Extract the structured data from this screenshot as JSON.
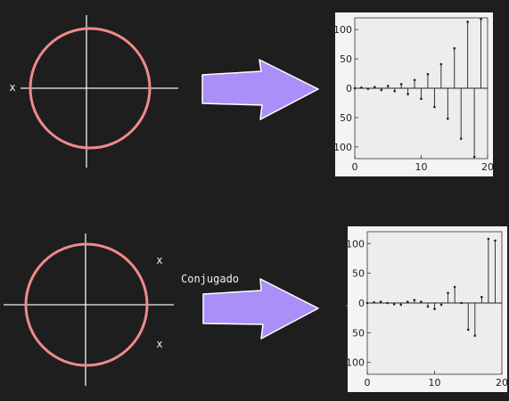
{
  "colors": {
    "background": "#1e1e1e",
    "circle": "#f08a8a",
    "axis": "#f2f2f2",
    "arrow": "#a98ff7",
    "plot_bg": "#eeeeee",
    "stem": "#222222"
  },
  "labels": {
    "pole_marker": "x",
    "arrow_caption": "Conjugado"
  },
  "chart_data": [
    {
      "type": "stem",
      "title": "",
      "xlabel": "",
      "ylabel": "",
      "xlim": [
        0,
        20
      ],
      "ylim": [
        -120,
        120
      ],
      "xticks": [
        "0",
        "10",
        "20"
      ],
      "yticks": [
        "100",
        "50",
        "0",
        "-50",
        "-100"
      ],
      "x": [
        0,
        1,
        2,
        3,
        4,
        5,
        6,
        7,
        8,
        9,
        10,
        11,
        12,
        13,
        14,
        15,
        16,
        17,
        18,
        19
      ],
      "values": [
        0,
        1,
        -1,
        2,
        -3,
        4,
        -5,
        7,
        -10,
        14,
        -18,
        24,
        -32,
        41,
        -52,
        68,
        -86,
        113,
        -117,
        118
      ]
    },
    {
      "type": "stem",
      "title": "",
      "xlabel": "",
      "ylabel": "",
      "xlim": [
        0,
        20
      ],
      "ylim": [
        -120,
        120
      ],
      "xticks": [
        "0",
        "10",
        "20"
      ],
      "yticks": [
        "100",
        "50",
        "0",
        "-50",
        "-100"
      ],
      "x": [
        0,
        1,
        2,
        3,
        4,
        5,
        6,
        7,
        8,
        9,
        10,
        11,
        12,
        13,
        14,
        15,
        16,
        17,
        18,
        19
      ],
      "values": [
        0,
        1,
        2,
        0,
        -2,
        -3,
        2,
        5,
        2,
        -6,
        -10,
        -3,
        17,
        27,
        0,
        -45,
        -55,
        10,
        108,
        105
      ]
    }
  ]
}
